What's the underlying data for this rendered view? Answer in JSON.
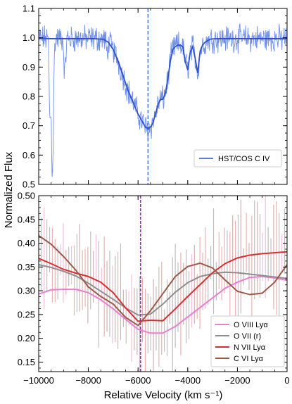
{
  "figure": {
    "ylabel_shared": "Normalized Flux",
    "xlabel": "Relative Velocity (km s⁻¹)"
  },
  "chart_data": [
    {
      "type": "line",
      "panel": "top",
      "xlim": [
        -10000,
        0
      ],
      "ylim": [
        0.5,
        1.1
      ],
      "yticks": [
        "0.5",
        "0.6",
        "0.7",
        "0.8",
        "0.9",
        "1.0",
        "1.1"
      ],
      "xticks": [
        "-10000",
        "-8000",
        "-6000",
        "-4000",
        "-2000",
        "0"
      ],
      "vline_x": -5600,
      "vline_color": "#3a63d8",
      "legend_position": "lower-right",
      "series": [
        {
          "name": "HST/COS C IV",
          "color": "#2f52c8",
          "model_x": [
            -10000,
            -9800,
            -9600,
            -9400,
            -9200,
            -9000,
            -8600,
            -8200,
            -7800,
            -7400,
            -7200,
            -7000,
            -6800,
            -6600,
            -6400,
            -6200,
            -6000,
            -5800,
            -5700,
            -5600,
            -5500,
            -5400,
            -5300,
            -5200,
            -5100,
            -5000,
            -4900,
            -4800,
            -4700,
            -4600,
            -4500,
            -4400,
            -4300,
            -4200,
            -4100,
            -4000,
            -3900,
            -3800,
            -3700,
            -3600,
            -3500,
            -3400,
            -3300,
            -3200,
            -3100,
            -3000,
            -2800,
            -2600,
            -2400,
            -2200,
            -2000,
            -1800,
            -1600,
            -1400,
            -1200,
            -1000,
            -800,
            -600,
            -400,
            -200,
            0
          ],
          "model_y": [
            0.998,
            0.998,
            0.997,
            0.997,
            0.997,
            0.997,
            0.997,
            0.997,
            0.997,
            0.995,
            0.985,
            0.96,
            0.92,
            0.87,
            0.82,
            0.78,
            0.74,
            0.71,
            0.695,
            0.69,
            0.695,
            0.71,
            0.74,
            0.77,
            0.79,
            0.79,
            0.81,
            0.86,
            0.92,
            0.96,
            0.97,
            0.975,
            0.975,
            0.97,
            0.92,
            0.89,
            0.95,
            0.97,
            0.93,
            0.88,
            0.955,
            0.975,
            0.985,
            0.99,
            0.995,
            0.996,
            0.997,
            0.997,
            0.997,
            0.997,
            0.997,
            0.997,
            0.997,
            0.997,
            0.997,
            0.997,
            0.997,
            0.997,
            0.997,
            0.997,
            0.997
          ]
        }
      ]
    },
    {
      "type": "line",
      "panel": "bottom",
      "xlim": [
        -10000,
        0
      ],
      "ylim": [
        0.13,
        0.5
      ],
      "yticks": [
        "0.15",
        "0.20",
        "0.25",
        "0.30",
        "0.35",
        "0.40",
        "0.45",
        "0.50"
      ],
      "xticks": [
        "−10000",
        "−8000",
        "−6000",
        "−4000",
        "−2000",
        "0"
      ],
      "vline_x": -5900,
      "vline_color": "#a020c0",
      "legend_position": "lower-right",
      "series": [
        {
          "name": "O VIII Lyα",
          "color": "#e87fd0",
          "x": [
            -10000,
            -9500,
            -9000,
            -8500,
            -8000,
            -7500,
            -7000,
            -6500,
            -6000,
            -5500,
            -5000,
            -4500,
            -4000,
            -3500,
            -3000,
            -2500,
            -2000,
            -1500,
            -1000,
            -500,
            0
          ],
          "y": [
            0.293,
            0.302,
            0.303,
            0.303,
            0.296,
            0.281,
            0.262,
            0.24,
            0.219,
            0.211,
            0.211,
            0.225,
            0.245,
            0.265,
            0.285,
            0.305,
            0.318,
            0.328,
            0.33,
            0.327,
            0.322
          ]
        },
        {
          "name": "O VII (r)",
          "color": "#8e8e8e",
          "x": [
            -10000,
            -9500,
            -9000,
            -8500,
            -8000,
            -7500,
            -7000,
            -6500,
            -6000,
            -5500,
            -5000,
            -4500,
            -4000,
            -3500,
            -3000,
            -2500,
            -2000,
            -1500,
            -1000,
            -500,
            0
          ],
          "y": [
            0.355,
            0.349,
            0.341,
            0.331,
            0.316,
            0.299,
            0.282,
            0.264,
            0.249,
            0.251,
            0.272,
            0.297,
            0.317,
            0.33,
            0.336,
            0.339,
            0.338,
            0.335,
            0.332,
            0.329,
            0.326
          ]
        },
        {
          "name": "N VII Lyα",
          "color": "#d62f2f",
          "x": [
            -10000,
            -9500,
            -9000,
            -8500,
            -8000,
            -7500,
            -7000,
            -6500,
            -6000,
            -5500,
            -5000,
            -4500,
            -4000,
            -3500,
            -3000,
            -2500,
            -2000,
            -1500,
            -1000,
            -500,
            0
          ],
          "y": [
            0.368,
            0.357,
            0.345,
            0.337,
            0.33,
            0.318,
            0.296,
            0.264,
            0.236,
            0.238,
            0.237,
            0.262,
            0.288,
            0.313,
            0.338,
            0.357,
            0.369,
            0.375,
            0.378,
            0.38,
            0.382
          ]
        },
        {
          "name": "C VI Lyα",
          "color": "#9c5a4a",
          "x": [
            -10000,
            -9500,
            -9000,
            -8500,
            -8000,
            -7500,
            -7000,
            -6500,
            -6000,
            -5500,
            -5000,
            -4500,
            -4000,
            -3500,
            -3000,
            -2500,
            -2000,
            -1500,
            -1000,
            -500,
            0
          ],
          "y": [
            0.416,
            0.398,
            0.372,
            0.343,
            0.308,
            0.288,
            0.272,
            0.244,
            0.227,
            0.258,
            0.294,
            0.33,
            0.351,
            0.358,
            0.348,
            0.323,
            0.299,
            0.292,
            0.295,
            0.318,
            0.355
          ]
        }
      ]
    }
  ]
}
